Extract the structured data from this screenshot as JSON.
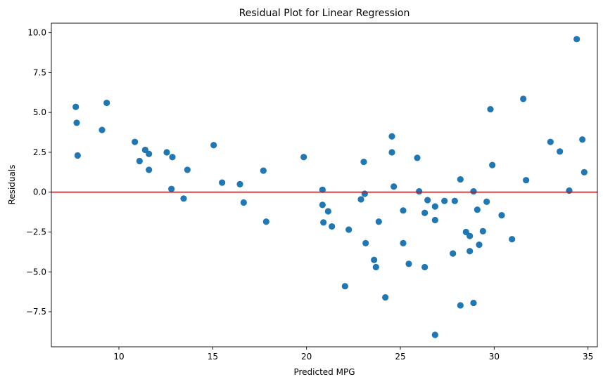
{
  "chart_data": {
    "type": "scatter",
    "title": "Residual Plot for Linear Regression",
    "xlabel": "Predicted MPG",
    "ylabel": "Residuals",
    "xlim": [
      6.4,
      35.5
    ],
    "ylim": [
      -9.7,
      10.6
    ],
    "xticks": [
      10,
      15,
      20,
      25,
      30,
      35
    ],
    "xtick_labels": [
      "10",
      "15",
      "20",
      "25",
      "30",
      "35"
    ],
    "yticks": [
      -7.5,
      -5.0,
      -2.5,
      0.0,
      2.5,
      5.0,
      7.5,
      10.0
    ],
    "ytick_labels": [
      "−7.5",
      "−5.0",
      "−2.5",
      "0.0",
      "2.5",
      "5.0",
      "7.5",
      "10.0"
    ],
    "grid": false,
    "point_color": "#1f77b4",
    "reference_line": {
      "y": 0,
      "color": "#ff0000"
    },
    "points": [
      [
        7.7,
        5.35
      ],
      [
        7.75,
        4.35
      ],
      [
        7.8,
        2.3
      ],
      [
        9.1,
        3.9
      ],
      [
        9.35,
        5.6
      ],
      [
        10.85,
        3.15
      ],
      [
        11.1,
        1.95
      ],
      [
        11.4,
        2.65
      ],
      [
        11.6,
        2.4
      ],
      [
        11.6,
        1.4
      ],
      [
        12.55,
        2.5
      ],
      [
        12.8,
        0.2
      ],
      [
        12.85,
        2.2
      ],
      [
        13.45,
        -0.4
      ],
      [
        13.65,
        1.4
      ],
      [
        15.05,
        2.95
      ],
      [
        15.5,
        0.6
      ],
      [
        16.45,
        0.5
      ],
      [
        16.65,
        -0.65
      ],
      [
        17.7,
        1.35
      ],
      [
        17.85,
        -1.85
      ],
      [
        19.85,
        2.2
      ],
      [
        20.85,
        0.15
      ],
      [
        20.85,
        -0.8
      ],
      [
        20.9,
        -1.9
      ],
      [
        21.15,
        -1.2
      ],
      [
        21.35,
        -2.15
      ],
      [
        22.05,
        -5.9
      ],
      [
        22.25,
        -2.35
      ],
      [
        22.9,
        -0.45
      ],
      [
        23.05,
        1.9
      ],
      [
        23.1,
        -0.1
      ],
      [
        23.15,
        -3.2
      ],
      [
        23.6,
        -4.25
      ],
      [
        23.7,
        -4.7
      ],
      [
        23.85,
        -1.85
      ],
      [
        24.2,
        -6.6
      ],
      [
        24.55,
        3.5
      ],
      [
        24.55,
        2.5
      ],
      [
        24.65,
        0.35
      ],
      [
        25.15,
        -1.15
      ],
      [
        25.15,
        -3.2
      ],
      [
        25.45,
        -4.5
      ],
      [
        25.9,
        2.15
      ],
      [
        26.0,
        0.05
      ],
      [
        26.3,
        -1.3
      ],
      [
        26.3,
        -4.7
      ],
      [
        26.45,
        -0.5
      ],
      [
        26.85,
        -0.9
      ],
      [
        26.85,
        -1.75
      ],
      [
        26.85,
        -8.95
      ],
      [
        27.35,
        -0.55
      ],
      [
        27.8,
        -3.85
      ],
      [
        27.9,
        -0.55
      ],
      [
        28.2,
        0.8
      ],
      [
        28.2,
        -7.1
      ],
      [
        28.5,
        -2.5
      ],
      [
        28.7,
        -2.75
      ],
      [
        28.7,
        -3.7
      ],
      [
        28.9,
        0.05
      ],
      [
        28.9,
        -6.95
      ],
      [
        29.1,
        -1.1
      ],
      [
        29.2,
        -3.3
      ],
      [
        29.4,
        -2.45
      ],
      [
        29.6,
        -0.6
      ],
      [
        29.8,
        5.2
      ],
      [
        29.9,
        1.7
      ],
      [
        30.4,
        -1.45
      ],
      [
        30.95,
        -2.95
      ],
      [
        31.55,
        5.85
      ],
      [
        31.7,
        0.75
      ],
      [
        33.0,
        3.15
      ],
      [
        33.5,
        2.55
      ],
      [
        34.0,
        0.1
      ],
      [
        34.4,
        9.6
      ],
      [
        34.7,
        3.3
      ],
      [
        34.8,
        1.25
      ]
    ]
  }
}
